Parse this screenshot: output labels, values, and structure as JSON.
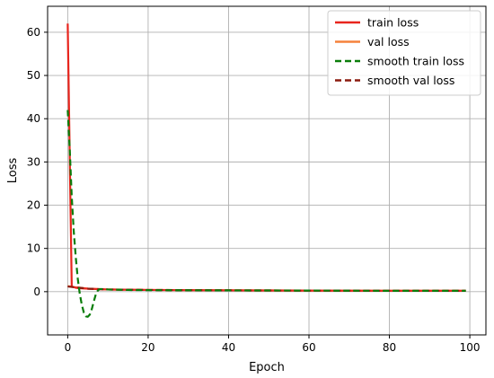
{
  "chart_data": {
    "type": "line",
    "title": "",
    "xlabel": "Epoch",
    "ylabel": "Loss",
    "xlim": [
      -5,
      104
    ],
    "ylim": [
      -10,
      66
    ],
    "xticks": [
      0,
      20,
      40,
      60,
      80,
      100
    ],
    "yticks": [
      0,
      10,
      20,
      30,
      40,
      50,
      60
    ],
    "xtick_labels": [
      "0",
      "20",
      "40",
      "60",
      "80",
      "100"
    ],
    "ytick_labels": [
      "0",
      "10",
      "20",
      "30",
      "40",
      "50",
      "60"
    ],
    "grid": true,
    "legend_position": "top-right",
    "series": [
      {
        "name": "train loss",
        "color": "#e8251d",
        "style": "solid",
        "x": [
          0,
          1,
          2,
          3,
          5,
          10,
          20,
          40,
          60,
          80,
          99
        ],
        "y": [
          62,
          1.2,
          0.9,
          0.8,
          0.7,
          0.5,
          0.4,
          0.3,
          0.25,
          0.2,
          0.2
        ]
      },
      {
        "name": "val loss",
        "color": "#f5823c",
        "style": "solid",
        "x": [
          0,
          1,
          2,
          3,
          5,
          10,
          20,
          40,
          60,
          80,
          99
        ],
        "y": [
          1.3,
          1.1,
          1.0,
          0.9,
          0.7,
          0.5,
          0.4,
          0.3,
          0.25,
          0.2,
          0.2
        ]
      },
      {
        "name": "smooth train loss",
        "color": "#0a7d0a",
        "style": "dashed",
        "x": [
          0,
          0.5,
          1,
          1.5,
          2,
          2.5,
          3,
          3.5,
          4,
          4.5,
          5,
          5.5,
          6,
          6.5,
          7,
          7.5,
          8,
          9,
          10,
          15,
          20,
          40,
          60,
          80,
          99
        ],
        "y": [
          42,
          33,
          22,
          14,
          8,
          3,
          -0.5,
          -3,
          -4.8,
          -5.7,
          -5.8,
          -5.3,
          -4,
          -2.2,
          -0.6,
          0.3,
          0.6,
          0.6,
          0.5,
          0.4,
          0.35,
          0.3,
          0.25,
          0.2,
          0.2
        ]
      },
      {
        "name": "smooth val loss",
        "color": "#8b1a0e",
        "style": "dashed",
        "x": [
          0,
          1,
          2,
          3,
          5,
          10,
          20,
          40,
          60,
          80,
          99
        ],
        "y": [
          1.2,
          1.1,
          1.0,
          0.9,
          0.7,
          0.5,
          0.4,
          0.3,
          0.25,
          0.2,
          0.2
        ]
      }
    ]
  }
}
